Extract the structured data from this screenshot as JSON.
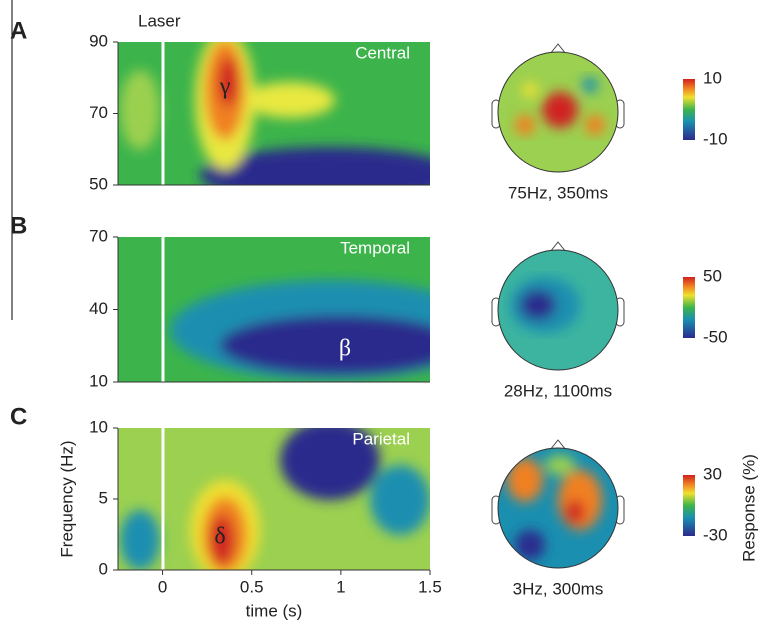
{
  "chart_data": [
    {
      "type": "heatmap",
      "panel_label": "A",
      "region": "Central",
      "annotation": "Laser",
      "symbol": "γ",
      "xlim": [
        -0.25,
        1.5
      ],
      "ylim": [
        50,
        90
      ],
      "yticks": [
        50,
        70,
        90
      ],
      "topo_caption": "75Hz, 350ms",
      "colorbar_ticks": [
        -10,
        10
      ]
    },
    {
      "type": "heatmap",
      "panel_label": "B",
      "region": "Temporal",
      "symbol": "β",
      "xlim": [
        -0.25,
        1.5
      ],
      "ylim": [
        10,
        70
      ],
      "yticks": [
        10,
        40,
        70
      ],
      "topo_caption": "28Hz, 1100ms",
      "colorbar_ticks": [
        -50,
        50
      ]
    },
    {
      "type": "heatmap",
      "panel_label": "C",
      "region": "Parietal",
      "symbol": "δ",
      "xlim": [
        -0.25,
        1.5
      ],
      "xticks": [
        0,
        0.5,
        1,
        1.5
      ],
      "xlabel": "time (s)",
      "ylim": [
        0,
        10
      ],
      "yticks": [
        0,
        5,
        10
      ],
      "ylabel": "Frequency (Hz)",
      "topo_caption": "3Hz, 300ms",
      "colorbar_ticks": [
        -30,
        30
      ],
      "colorbar_label": "Response (%)"
    }
  ]
}
